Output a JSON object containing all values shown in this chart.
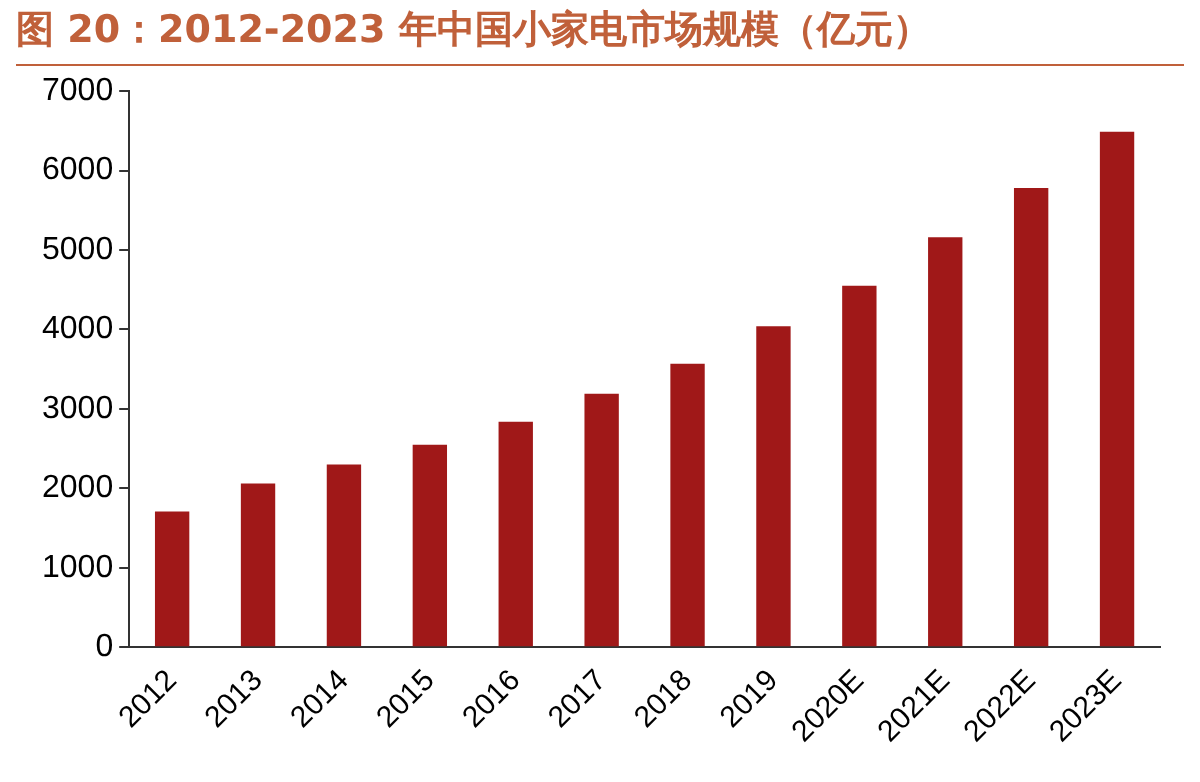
{
  "chart_data": {
    "type": "bar",
    "title": "图 20：2012-2023 年中国小家电市场规模（亿元）",
    "categories": [
      "2012",
      "2013",
      "2014",
      "2015",
      "2016",
      "2017",
      "2018",
      "2019",
      "2020E",
      "2021E",
      "2022E",
      "2023E"
    ],
    "values": [
      1710,
      2060,
      2300,
      2550,
      2840,
      3190,
      3570,
      4040,
      4550,
      5160,
      5780,
      6490
    ],
    "color": "#a01818",
    "ylim": [
      0,
      7000
    ],
    "yticks": [
      0,
      1000,
      2000,
      3000,
      4000,
      5000,
      6000,
      7000
    ],
    "grid": false,
    "legend": false
  }
}
